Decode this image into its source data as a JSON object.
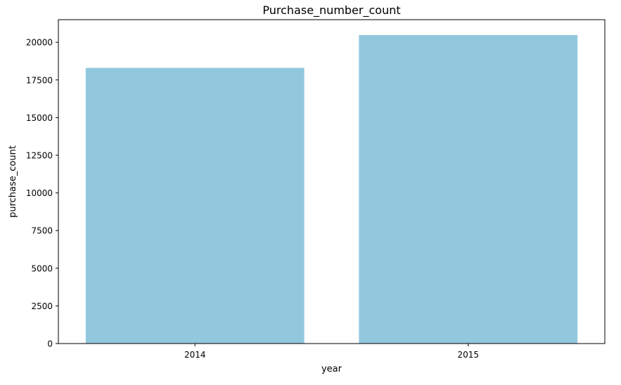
{
  "chart_data": {
    "type": "bar",
    "title": "Purchase_number_count",
    "xlabel": "year",
    "ylabel": "purchase_count",
    "categories": [
      "2014",
      "2015"
    ],
    "values": [
      18300,
      20480
    ],
    "ylim": [
      0,
      21500
    ],
    "yticks": [
      0,
      2500,
      5000,
      7500,
      10000,
      12500,
      15000,
      17500,
      20000
    ],
    "ytick_labels": [
      "0",
      "2500",
      "5000",
      "7500",
      "10000",
      "12500",
      "15000",
      "17500",
      "20000"
    ],
    "grid": false,
    "legend": "none",
    "bar_color": "#92c8de"
  }
}
